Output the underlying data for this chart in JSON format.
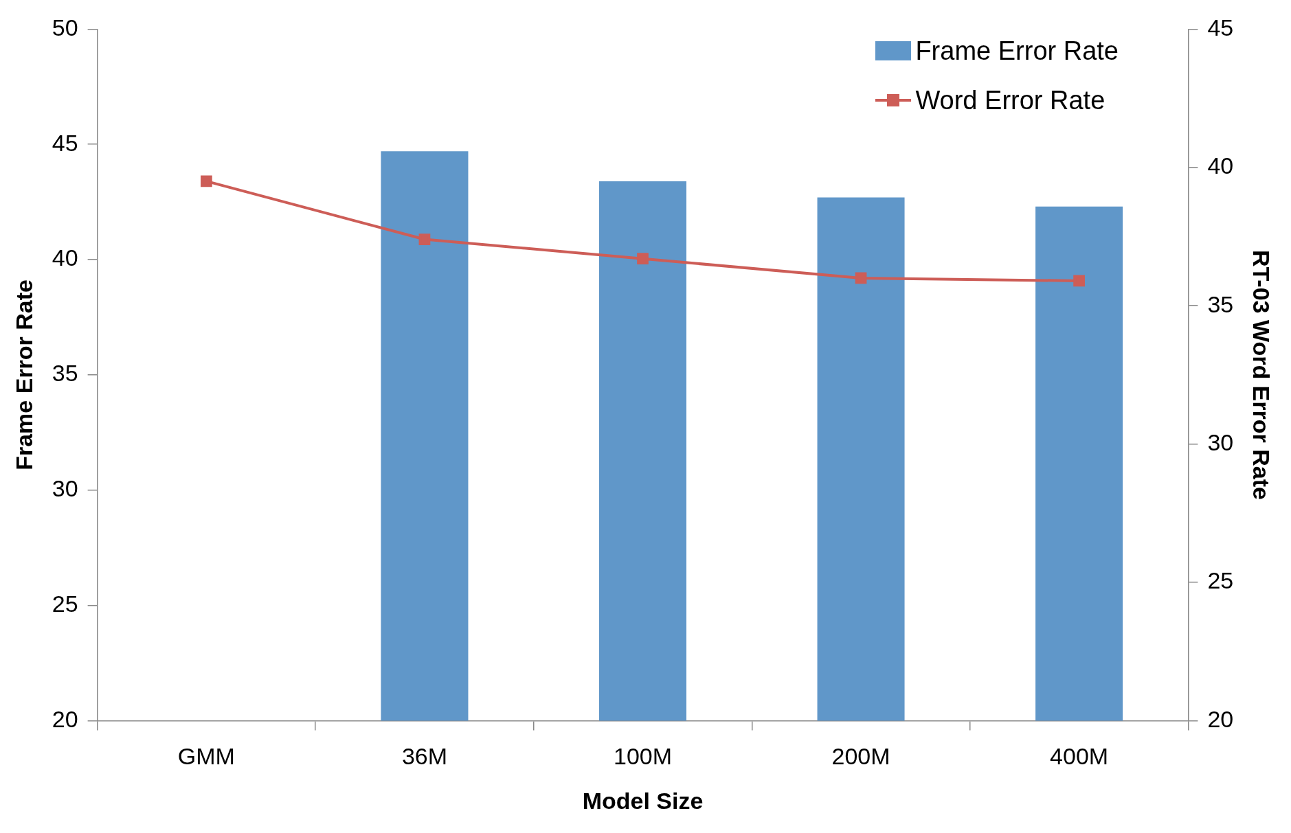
{
  "chart_data": {
    "type": "bar",
    "xlabel": "Model Size",
    "ylabel": "Frame Error Rate",
    "y2label": "RT-03 Word Error Rate",
    "categories": [
      "GMM",
      "36M",
      "100M",
      "200M",
      "400M"
    ],
    "series": [
      {
        "name": "Frame Error Rate",
        "color": "#6097c9",
        "values": [
          null,
          44.7,
          43.4,
          42.7,
          42.3
        ]
      },
      {
        "name": "Word Error Rate",
        "type": "line",
        "axis": "y2",
        "color": "#cd5d57",
        "values": [
          39.5,
          37.4,
          36.7,
          36.0,
          35.9
        ]
      }
    ],
    "ylim": [
      20,
      50
    ],
    "yticks": [
      20,
      25,
      30,
      35,
      40,
      45,
      50
    ],
    "y2lim": [
      20,
      45
    ],
    "y2ticks": [
      20,
      25,
      30,
      35,
      40,
      45
    ],
    "grid": false,
    "legend": "top right",
    "marker": "square",
    "line_style": "solid"
  }
}
